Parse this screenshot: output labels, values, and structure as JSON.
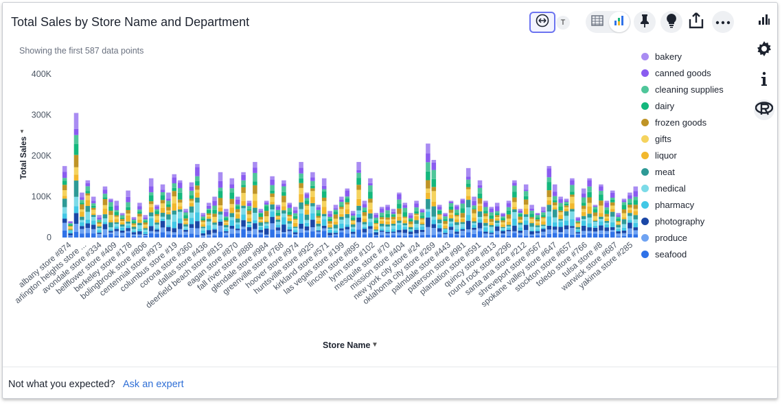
{
  "title": "Total Sales by Store Name and Department",
  "subtitle": "Showing the first 587 data points",
  "toolbar": {
    "expand_icon": "expand-horizontal-icon",
    "t_label": "T",
    "table_icon": "table-icon",
    "chart_icon": "chart-icon",
    "pin_icon": "pin-icon",
    "bulb_icon": "lightbulb-icon",
    "share_icon": "share-icon",
    "more_icon": "more-icon"
  },
  "sidebar": {
    "icons": [
      "bar-chart-icon",
      "gear-icon",
      "info-icon",
      "r-icon"
    ]
  },
  "footer": {
    "text": "Not what you expected?",
    "link": "Ask an expert"
  },
  "chart_data": {
    "type": "bar",
    "stacked": true,
    "ylabel": "Total Sales",
    "xlabel": "Store Name",
    "ylim": [
      0,
      400000
    ],
    "yticks": [
      "0",
      "100K",
      "200K",
      "300K",
      "400K"
    ],
    "legend_position": "right",
    "series": [
      {
        "name": "bakery",
        "color": "#a98cf2"
      },
      {
        "name": "canned goods",
        "color": "#8a5cf0"
      },
      {
        "name": "cleaning supplies",
        "color": "#4fc69a"
      },
      {
        "name": "dairy",
        "color": "#14b87d"
      },
      {
        "name": "frozen goods",
        "color": "#bf9426"
      },
      {
        "name": "gifts",
        "color": "#f5d35e"
      },
      {
        "name": "liquor",
        "color": "#f2b82d"
      },
      {
        "name": "meat",
        "color": "#2e9a96"
      },
      {
        "name": "medical",
        "color": "#7cdbe8"
      },
      {
        "name": "pharmacy",
        "color": "#42c8e6"
      },
      {
        "name": "photography",
        "color": "#1b47a6"
      },
      {
        "name": "produce",
        "color": "#6fa3f2"
      },
      {
        "name": "seafood",
        "color": "#2f72e8"
      }
    ],
    "x_labels": [
      "albany store #874",
      "arlington heights store ...",
      "avondale store #334",
      "bellflower store #409",
      "berkeley store #178",
      "bolingbrook store #806",
      "centennial store #973",
      "columbus store #19",
      "corona store #360",
      "dallas store #436",
      "deerfield beach store #815",
      "eagan store #870",
      "fall river store #888",
      "glendale store #984",
      "greenville store #768",
      "hoover store #974",
      "huntsville store #925",
      "kirkland store #571",
      "las vegas store #199",
      "lincoln store #895",
      "lynn store #102",
      "mesquite store #70",
      "mission store #404",
      "new york city store #24",
      "oklahoma city store #269",
      "palmdale store #443",
      "paterson store #981",
      "plantation store #591",
      "quincy store #813",
      "round rock store #296",
      "santa ana store #212",
      "shreveport store #567",
      "spokane valley store #647",
      "stockton store #657",
      "toledo store #766",
      "tulsa store #8",
      "warwick store #687",
      "yakima store #285"
    ],
    "totals": [
      175000,
      40000,
      305000,
      110000,
      140000,
      100000,
      55000,
      125000,
      95000,
      90000,
      60000,
      115000,
      50000,
      85000,
      55000,
      145000,
      80000,
      130000,
      110000,
      155000,
      140000,
      70000,
      135000,
      180000,
      60000,
      85000,
      100000,
      160000,
      70000,
      145000,
      100000,
      160000,
      90000,
      185000,
      70000,
      90000,
      150000,
      80000,
      140000,
      85000,
      75000,
      185000,
      110000,
      160000,
      80000,
      145000,
      65000,
      80000,
      100000,
      120000,
      65000,
      185000,
      90000,
      145000,
      60000,
      75000,
      80000,
      70000,
      110000,
      85000,
      60000,
      90000,
      70000,
      230000,
      190000,
      80000,
      60000,
      90000,
      80000,
      95000,
      170000,
      100000,
      140000,
      90000,
      75000,
      85000,
      60000,
      90000,
      140000,
      70000,
      130000,
      80000,
      60000,
      75000,
      175000,
      130000,
      100000,
      95000,
      145000,
      50000,
      120000,
      145000,
      80000,
      130000,
      90000,
      115000,
      60000,
      95000,
      110000,
      125000
    ]
  }
}
